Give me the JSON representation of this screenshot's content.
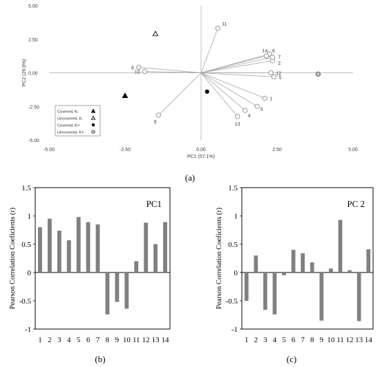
{
  "captions": {
    "a": "(a)",
    "b": "(b)",
    "c": "(c)"
  },
  "chart_data": [
    {
      "id": "a",
      "type": "scatter",
      "xlabel": "PC1 (57.1%)",
      "ylabel": "PC2 (29.6%)",
      "xlim": [
        -5,
        5
      ],
      "ylim": [
        -5,
        5
      ],
      "xticks": [
        "-5.00",
        "-2.50",
        "0.00",
        "2.50",
        "5.00"
      ],
      "yticks": [
        "5.00",
        "2.50",
        "0.00",
        "-2.50",
        "-5.00"
      ],
      "grid": false,
      "legend_position": "lower-left",
      "series": [
        {
          "name": "Covered, K-",
          "marker": "filled-triangle",
          "points": [
            [
              -2.5,
              -1.7
            ]
          ]
        },
        {
          "name": "Uncovered, K-",
          "marker": "open-triangle",
          "points": [
            [
              -1.5,
              2.9
            ]
          ]
        },
        {
          "name": "Covered, K+",
          "marker": "filled-circle",
          "points": [
            [
              0.2,
              -1.4
            ]
          ]
        },
        {
          "name": "Uncovered, K+",
          "marker": "grey-circle",
          "points": [
            [
              3.85,
              -0.1
            ]
          ]
        }
      ],
      "loadings": [
        {
          "label": "1",
          "x": 2.1,
          "y": -1.9
        },
        {
          "label": "2",
          "x": 2.35,
          "y": 0.9
        },
        {
          "label": "3",
          "x": 1.85,
          "y": -2.5
        },
        {
          "label": "4",
          "x": 1.45,
          "y": -2.8
        },
        {
          "label": "5",
          "x": 2.4,
          "y": -0.3
        },
        {
          "label": "6",
          "x": 2.25,
          "y": 1.4
        },
        {
          "label": "7",
          "x": 2.35,
          "y": 1.15
        },
        {
          "label": "8",
          "x": -2.05,
          "y": 0.4
        },
        {
          "label": "9",
          "x": -1.4,
          "y": -3.15
        },
        {
          "label": "10",
          "x": -1.85,
          "y": 0.1
        },
        {
          "label": "11",
          "x": 0.55,
          "y": 3.3
        },
        {
          "label": "12",
          "x": 2.3,
          "y": 0.0
        },
        {
          "label": "13",
          "x": 1.2,
          "y": -3.25
        },
        {
          "label": "14",
          "x": 2.15,
          "y": 1.25
        }
      ]
    },
    {
      "id": "b",
      "type": "bar",
      "panel_label": "PC1",
      "ylabel": "Pearson Correlation Coeficients (r)",
      "ylim": [
        -1,
        1.5
      ],
      "yticks": [
        "1.5",
        "1",
        "0.5",
        "0",
        "-0.5",
        "-1"
      ],
      "categories": [
        "1",
        "2",
        "3",
        "4",
        "5",
        "6",
        "7",
        "8",
        "9",
        "10",
        "11",
        "12",
        "13",
        "14"
      ],
      "values": [
        0.8,
        0.95,
        0.74,
        0.57,
        0.98,
        0.89,
        0.85,
        -0.74,
        -0.52,
        -0.64,
        0.2,
        0.88,
        0.5,
        0.89
      ],
      "bar_color": "#808080"
    },
    {
      "id": "c",
      "type": "bar",
      "panel_label": "PC 2",
      "ylabel": "Pearson Correlation Coeficients (r)",
      "ylim": [
        -1,
        1.5
      ],
      "yticks": [
        "1.5",
        "1",
        "0.5",
        "0",
        "-0.5",
        "-1"
      ],
      "categories": [
        "1",
        "2",
        "3",
        "4",
        "5",
        "6",
        "7",
        "8",
        "9",
        "10",
        "11",
        "12",
        "13",
        "14"
      ],
      "values": [
        -0.5,
        0.3,
        -0.66,
        -0.74,
        -0.05,
        0.4,
        0.34,
        0.18,
        -0.85,
        0.07,
        0.93,
        0.04,
        -0.86,
        0.41
      ],
      "bar_color": "#808080"
    }
  ]
}
